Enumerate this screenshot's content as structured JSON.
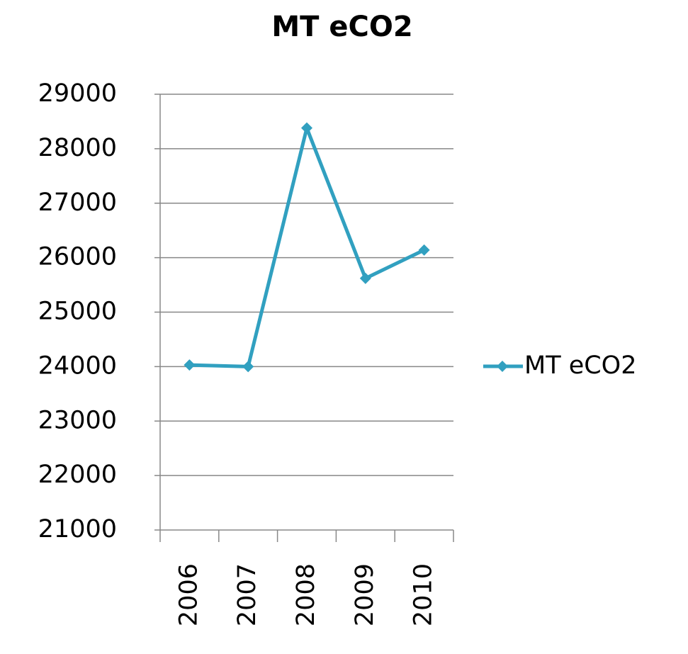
{
  "chart_data": {
    "type": "line",
    "title": "MT eCO2",
    "categories": [
      "2006",
      "2007",
      "2008",
      "2009",
      "2010"
    ],
    "series": [
      {
        "name": "MT eCO2",
        "color": "#31a0c0",
        "values": [
          24030,
          24000,
          28380,
          25620,
          26140
        ]
      }
    ],
    "ylim": [
      21000,
      29000
    ],
    "yticks": [
      21000,
      22000,
      23000,
      24000,
      25000,
      26000,
      27000,
      28000,
      29000
    ],
    "grid": true,
    "legend": "right"
  }
}
